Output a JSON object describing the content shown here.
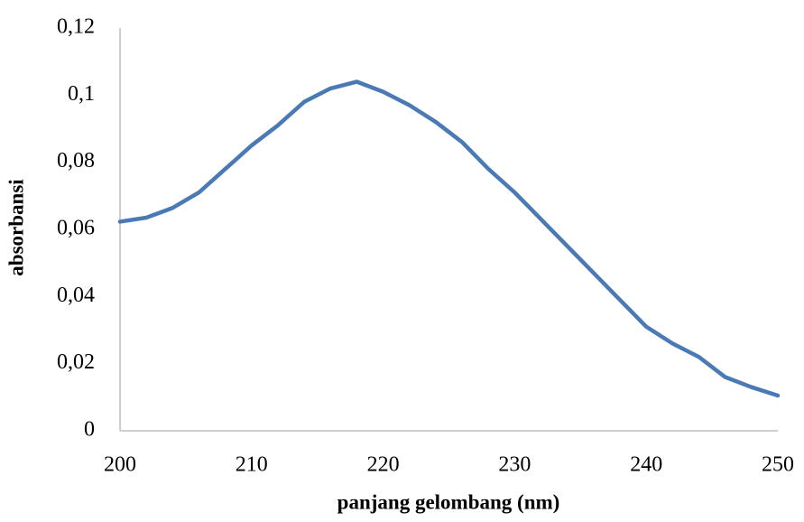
{
  "chart_data": {
    "type": "line",
    "x_label": "panjang gelombang (nm)",
    "y_label": "absorbansi",
    "x": [
      200,
      202,
      204,
      206,
      208,
      210,
      212,
      214,
      216,
      218,
      220,
      222,
      224,
      226,
      228,
      230,
      232,
      234,
      236,
      238,
      240,
      242,
      244,
      246,
      248,
      250
    ],
    "series": [
      {
        "color": "#4a7ab5",
        "values": [
          0.0623,
          0.0635,
          0.0664,
          0.071,
          0.078,
          0.085,
          0.091,
          0.098,
          0.102,
          0.104,
          0.101,
          0.097,
          0.092,
          0.086,
          0.078,
          0.071,
          0.063,
          0.055,
          0.047,
          0.039,
          0.031,
          0.026,
          0.022,
          0.016,
          0.013,
          0.0105
        ]
      }
    ],
    "xlim": [
      200,
      250
    ],
    "xticks": [
      200,
      210,
      220,
      230,
      240,
      250
    ],
    "ylim": [
      0,
      0.12
    ],
    "yticks": [
      0,
      {
        "value": 0.02,
        "label": "0,02"
      },
      {
        "value": 0.04,
        "label": "0,04"
      },
      {
        "value": 0.06,
        "label": "0,06"
      },
      {
        "value": 0.08,
        "label": "0,08"
      },
      {
        "value": 0.1,
        "label": "0,1"
      },
      {
        "value": 0.12,
        "label": "0,12"
      }
    ],
    "grid": false
  }
}
